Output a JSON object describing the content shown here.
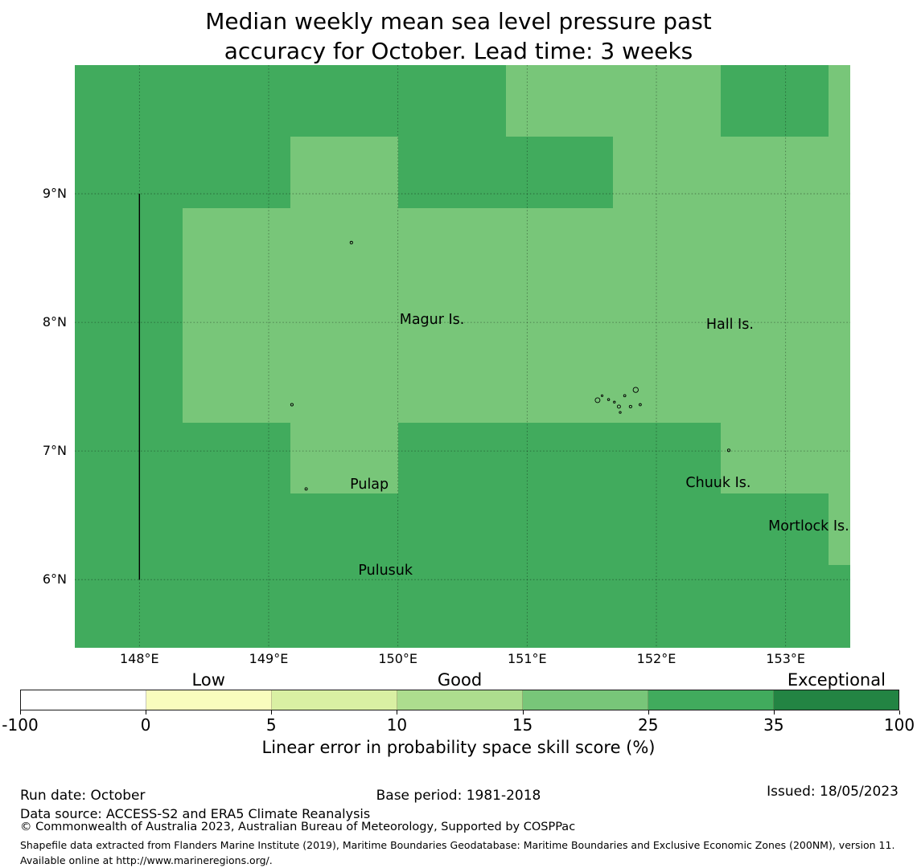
{
  "title": {
    "line1": "Median weekly mean sea level pressure past",
    "line2": "accuracy for October. Lead time: 3 weeks"
  },
  "chart_data": {
    "type": "heatmap",
    "title": "Median weekly mean sea level pressure past accuracy for October. Lead time: 3 weeks",
    "x_axis": {
      "label": "",
      "range": [
        147.5,
        153.5
      ],
      "ticks": [
        {
          "label": "148°E",
          "lon": 148
        },
        {
          "label": "149°E",
          "lon": 149
        },
        {
          "label": "150°E",
          "lon": 150
        },
        {
          "label": "151°E",
          "lon": 151
        },
        {
          "label": "152°E",
          "lon": 152
        },
        {
          "label": "153°E",
          "lon": 153
        }
      ]
    },
    "y_axis": {
      "label": "",
      "range": [
        5.47,
        10.0
      ],
      "ticks": [
        {
          "label": "9°N",
          "lat": 9
        },
        {
          "label": "8°N",
          "lat": 8
        },
        {
          "label": "7°N",
          "lat": 7
        },
        {
          "label": "6°N",
          "lat": 6
        }
      ]
    },
    "grid": {
      "col_edges_lon": [
        147.5,
        148.3333,
        149.1667,
        150.0,
        150.8333,
        151.6667,
        152.5,
        153.3333,
        153.5
      ],
      "row_edges_lat": [
        10.0,
        9.4444,
        8.8889,
        8.3333,
        7.7778,
        7.2222,
        6.6667,
        6.1111,
        5.47
      ],
      "values": [
        [
          "25-35",
          "25-35",
          "25-35",
          "25-35",
          "15-25",
          "15-25",
          "25-35",
          "15-25"
        ],
        [
          "25-35",
          "25-35",
          "15-25",
          "25-35",
          "25-35",
          "15-25",
          "15-25",
          "15-25"
        ],
        [
          "25-35",
          "15-25",
          "15-25",
          "15-25",
          "15-25",
          "15-25",
          "15-25",
          "15-25"
        ],
        [
          "25-35",
          "15-25",
          "15-25",
          "15-25",
          "15-25",
          "15-25",
          "15-25",
          "15-25"
        ],
        [
          "25-35",
          "15-25",
          "15-25",
          "15-25",
          "15-25",
          "15-25",
          "15-25",
          "15-25"
        ],
        [
          "25-35",
          "25-35",
          "15-25",
          "25-35",
          "25-35",
          "25-35",
          "15-25",
          "15-25"
        ],
        [
          "25-35",
          "25-35",
          "25-35",
          "25-35",
          "25-35",
          "25-35",
          "25-35",
          "15-25"
        ],
        [
          "25-35",
          "25-35",
          "25-35",
          "25-35",
          "25-35",
          "25-35",
          "25-35",
          "25-35"
        ]
      ]
    },
    "colormap": {
      "15-25": "#78c679",
      "25-35": "#41ab5d"
    },
    "boundary_line": {
      "lon": 148,
      "lat_start": 6,
      "lat_end": 9
    },
    "gridlines": "dashed"
  },
  "map": {
    "labels": [
      {
        "text": "Magur Is.",
        "lon": 149.685,
        "lat": 8.525
      },
      {
        "text": "Hall Is.",
        "lon": 151.99,
        "lat": 8.49
      },
      {
        "text": "Pulap",
        "lon": 149.2,
        "lat": 7.245
      },
      {
        "text": "Chuuk Is.",
        "lon": 151.9,
        "lat": 7.26
      },
      {
        "text": "Mortlock Is.",
        "lon": 152.6,
        "lat": 6.92
      },
      {
        "text": "Pulusuk",
        "lon": 149.325,
        "lat": 6.575
      }
    ],
    "islands": [
      {
        "name": "chuuk-lagoon-island",
        "lon": 151.84,
        "lat": 7.475,
        "r": 3.2
      },
      {
        "name": "chuuk-lagoon-island",
        "lon": 151.545,
        "lat": 7.395,
        "r": 3.0
      },
      {
        "name": "chuuk-lagoon-island",
        "lon": 151.58,
        "lat": 7.43,
        "r": 1.1
      },
      {
        "name": "chuuk-lagoon-island",
        "lon": 151.63,
        "lat": 7.4,
        "r": 1.3
      },
      {
        "name": "chuuk-lagoon-island",
        "lon": 151.675,
        "lat": 7.38,
        "r": 1.2
      },
      {
        "name": "chuuk-lagoon-island",
        "lon": 151.71,
        "lat": 7.345,
        "r": 2.0
      },
      {
        "name": "chuuk-lagoon-island",
        "lon": 151.72,
        "lat": 7.3,
        "r": 1.2
      },
      {
        "name": "chuuk-lagoon-island",
        "lon": 151.755,
        "lat": 7.43,
        "r": 1.4
      },
      {
        "name": "chuuk-lagoon-island",
        "lon": 151.8,
        "lat": 7.345,
        "r": 1.6
      },
      {
        "name": "chuuk-lagoon-island",
        "lon": 151.875,
        "lat": 7.36,
        "r": 1.4
      },
      {
        "name": "magur-island",
        "lon": 149.64,
        "lat": 8.62,
        "r": 1.6
      },
      {
        "name": "pulap-island",
        "lon": 149.18,
        "lat": 7.36,
        "r": 1.6
      },
      {
        "name": "pulusuk-island",
        "lon": 149.29,
        "lat": 6.705,
        "r": 1.5
      },
      {
        "name": "mortlock-island",
        "lon": 152.56,
        "lat": 7.005,
        "r": 1.6
      }
    ]
  },
  "colorbar": {
    "tick_labels": [
      "-100",
      "0",
      "5",
      "10",
      "15",
      "25",
      "35",
      "100"
    ],
    "segment_colors": [
      "#ffffff",
      "#f9fcbd",
      "#d9f0a3",
      "#addd8e",
      "#78c679",
      "#41ab5d",
      "#238443"
    ],
    "categories": [
      {
        "label": "Low",
        "seg": 1
      },
      {
        "label": "Good",
        "seg": 3
      },
      {
        "label": "Exceptional",
        "seg": 6
      }
    ],
    "axis_label": "Linear error in probability space skill score (%)"
  },
  "footer": {
    "run_date": "Run date: October",
    "base_period": "Base period: 1981-2018",
    "issued": "Issued: 18/05/2023",
    "data_source": "Data source: ACCESS-S2 and ERA5 Climate Reanalysis",
    "copyright": "© Commonwealth of Australia 2023, Australian Bureau of Meteorology, Supported by COSPPac",
    "shapefile_note": "Shapefile data extracted from Flanders Marine Institute (2019), Maritime Boundaries Geodatabase: Maritime Boundaries and Exclusive Economic Zones (200NM), version 11. Available online at http://www.marineregions.org/."
  }
}
